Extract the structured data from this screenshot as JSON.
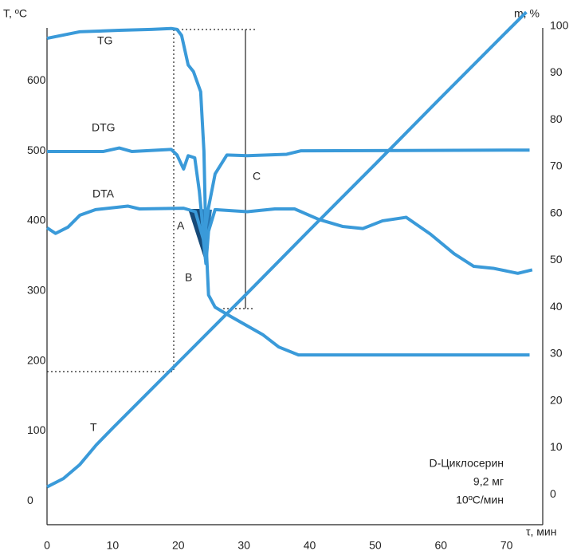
{
  "chart_data": {
    "type": "line",
    "y_label": "T, ºC",
    "y2_label": "m, %",
    "x_label": "τ, мин",
    "annotations": [
      "TG",
      "DTG",
      "DTA",
      "T",
      "A",
      "B",
      "C",
      "D-Циклосерин",
      "9,2 мг",
      "10ºC/мин"
    ],
    "color": "#3a9ad9",
    "xlim": [
      0,
      75.5
    ],
    "xticks": [
      0,
      10,
      20,
      30,
      40,
      50,
      60,
      70
    ],
    "ylim": [
      -35,
      680
    ],
    "yticks": [
      0,
      100,
      200,
      300,
      400,
      500,
      600
    ],
    "y2lim": [
      -6.6,
      100.3
    ],
    "y2ticks": [
      0,
      10,
      20,
      30,
      40,
      50,
      60,
      70,
      80,
      90,
      100
    ],
    "series": [
      {
        "name": "TG",
        "axis": "y2",
        "x": [
          0,
          5.0,
          11.0,
          15.9,
          18.9,
          19.8,
          20.5,
          21.5,
          22.3,
          23.4,
          23.9,
          24.2,
          24.6,
          25.6,
          28.0,
          32.9,
          35.3,
          38.3,
          73.5
        ],
        "values": [
          97.4,
          98.8,
          99.1,
          99.3,
          99.5,
          99.3,
          98.0,
          91.7,
          90.3,
          86.0,
          73.3,
          54.5,
          42.6,
          40.0,
          38.0,
          34.1,
          31.5,
          29.8,
          29.8
        ]
      },
      {
        "name": "DTG",
        "x": [
          0,
          8.6,
          11.0,
          12.9,
          18.9,
          19.8,
          20.8,
          21.5,
          22.5,
          23.2,
          23.9,
          24.6,
          25.6,
          27.4,
          30.5,
          36.5,
          38.7,
          73.5
        ],
        "values": [
          499,
          499,
          504,
          499,
          502,
          494,
          474,
          493,
          490,
          442,
          374,
          419,
          467,
          494,
          493,
          495,
          500,
          501
        ]
      },
      {
        "name": "DTA",
        "x": [
          0,
          1.3,
          3.2,
          5.0,
          7.4,
          12.3,
          14.1,
          20.8,
          22.6,
          23.8,
          24.2,
          24.6,
          25.6,
          30.5,
          34.7,
          37.7,
          41.4,
          45.0,
          48.1,
          51.1,
          54.7,
          58.4,
          62.0,
          65.0,
          68.1,
          71.7,
          73.9
        ],
        "values": [
          390,
          382,
          391,
          408,
          416,
          421,
          417,
          418,
          413,
          374,
          339,
          385,
          416,
          413,
          417,
          417,
          402,
          392,
          389,
          400,
          405,
          381,
          353,
          335,
          332,
          325,
          330
        ]
      },
      {
        "name": "T",
        "x": [
          0,
          2.5,
          5,
          7.5,
          10,
          20,
          30,
          40,
          50,
          60,
          70,
          73
        ],
        "values": [
          20,
          32,
          52,
          80,
          104,
          198,
          292,
          387,
          481,
          576,
          670,
          698
        ]
      }
    ]
  }
}
